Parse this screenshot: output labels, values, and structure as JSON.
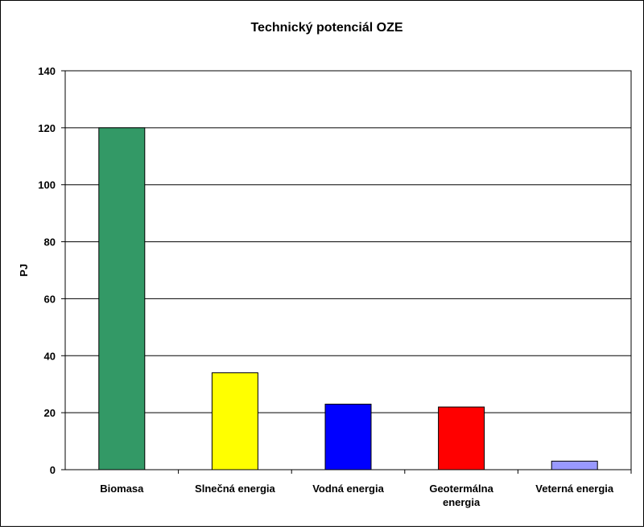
{
  "chart_data": {
    "type": "bar",
    "title": "Technický potenciál OZE",
    "xlabel": "",
    "ylabel": "PJ",
    "ylim": [
      0,
      140
    ],
    "yticks": [
      0,
      20,
      40,
      60,
      80,
      100,
      120,
      140
    ],
    "grid": true,
    "legend": "none",
    "categories": [
      [
        "Biomasa"
      ],
      [
        "Slnečná energia"
      ],
      [
        "Vodná energia"
      ],
      [
        "Geotermálna",
        "energia"
      ],
      [
        "Veterná energia"
      ]
    ],
    "values": [
      120,
      34,
      23,
      22,
      3
    ],
    "colors": [
      "#339966",
      "#ffff00",
      "#0000ff",
      "#ff0000",
      "#9999ff"
    ]
  }
}
